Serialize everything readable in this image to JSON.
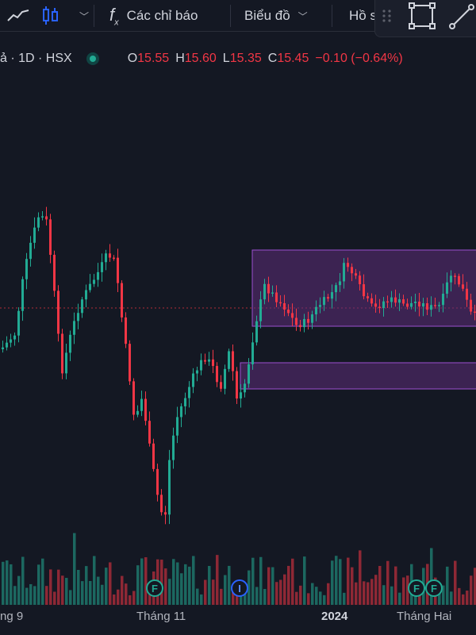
{
  "toolbar": {
    "indicators_label": "Các chỉ báo",
    "chart_label": "Biểu đồ",
    "profile_label": "Hồ s",
    "icons": [
      "line-chart-icon",
      "candles-icon",
      "chevron-down-icon",
      "fx-icon",
      "drag-handle-icon",
      "rectangle-icon",
      "trend-line-icon"
    ]
  },
  "legend": {
    "symbol": "ả · 1D · HSX",
    "open_key": "O",
    "open": "15.55",
    "high_key": "H",
    "high": "15.60",
    "low_key": "L",
    "low": "15.35",
    "close_key": "C",
    "close": "15.45",
    "change": "−0.10 (−0.64%)",
    "status_color": "#22ab94"
  },
  "xaxis": [
    "ng 9",
    "Tháng 11",
    "2024",
    "Tháng Hai"
  ],
  "events": {
    "f": "F",
    "i": "I"
  },
  "colors": {
    "up": "#22ab94",
    "down": "#f23645",
    "zone_fill": "#5c2d7a",
    "zone_border": "#9c4fd0",
    "background": "#141823"
  },
  "chart_data": {
    "type": "candlestick",
    "last": {
      "open": 15.55,
      "high": 15.6,
      "low": 15.35,
      "close": 15.45,
      "change": -0.1,
      "change_pct": -0.64
    },
    "zones": [
      {
        "from": 15.4,
        "to": 16.1
      },
      {
        "from": 14.6,
        "to": 15.0
      }
    ],
    "price_line": 15.55
  }
}
